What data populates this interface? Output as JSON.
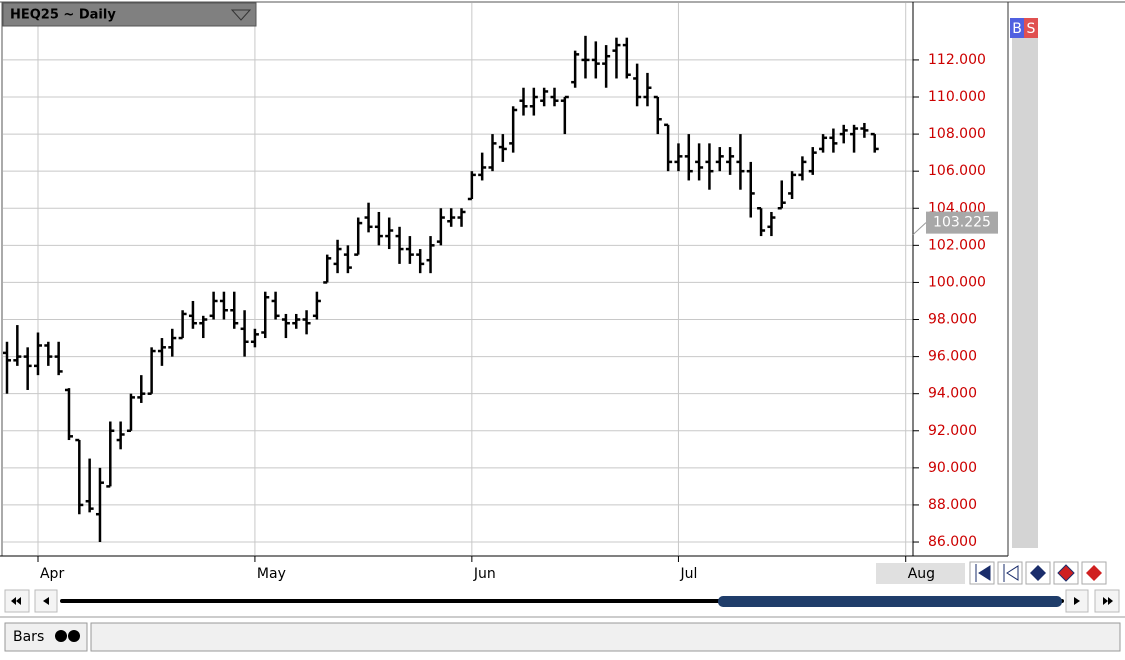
{
  "chart_data": {
    "type": "ohlc",
    "title": "HEQ25 ~ Daily",
    "color": "#000000",
    "categories": [
      null,
      null,
      null,
      "Apr",
      null,
      null,
      null,
      null,
      null,
      null,
      null,
      null,
      null,
      null,
      null,
      null,
      null,
      null,
      null,
      null,
      null,
      null,
      null,
      null,
      "May",
      null,
      null,
      null,
      null,
      null,
      null,
      null,
      null,
      null,
      null,
      null,
      null,
      null,
      null,
      null,
      null,
      null,
      null,
      null,
      null,
      "Jun",
      null,
      null,
      null,
      null,
      null,
      null,
      null,
      null,
      null,
      null,
      null,
      null,
      null,
      null,
      null,
      null,
      null,
      null,
      null,
      "Jul",
      null,
      null,
      null,
      null,
      null,
      null,
      null,
      null,
      null,
      null,
      null,
      null,
      null,
      null,
      null,
      null,
      null,
      null,
      null,
      null,
      null,
      "Aug"
    ],
    "open": [
      96.2,
      95.8,
      96.0,
      95.5,
      96.6,
      96.0,
      94.2,
      91.5,
      88.2,
      87.5,
      89.0,
      91.5,
      92.0,
      93.8,
      94.0,
      96.3,
      96.5,
      97.0,
      98.2,
      97.8,
      98.2,
      99.0,
      98.5,
      97.5,
      96.8,
      97.3,
      99.0,
      98.0,
      97.8,
      98.0,
      98.2,
      100.0,
      101.0,
      101.5,
      101.5,
      103.5,
      103.0,
      102.5,
      102.5,
      101.8,
      101.5,
      101.2,
      102.2,
      103.3,
      103.5,
      104.5,
      105.8,
      106.2,
      107.3,
      107.5,
      109.8,
      109.5,
      109.8,
      110.0,
      109.8,
      110.8,
      112.0,
      112.0,
      111.8,
      112.5,
      112.8,
      111.0,
      110.0,
      110.0,
      108.5,
      106.5,
      106.8,
      106.5,
      106.5,
      106.5,
      106.5,
      106.5,
      106.0,
      104.0,
      103.0,
      104.0,
      104.8,
      105.8,
      106.0,
      107.2,
      107.8,
      108.0,
      108.0,
      108.3,
      108.0,
      null,
      null,
      null
    ],
    "high": [
      96.8,
      97.7,
      96.5,
      97.3,
      96.8,
      96.8,
      94.3,
      91.5,
      90.5,
      90.0,
      92.5,
      92.5,
      94.0,
      95.0,
      96.5,
      97.0,
      97.5,
      98.5,
      99.0,
      98.2,
      99.5,
      99.5,
      99.5,
      98.5,
      97.5,
      99.5,
      99.5,
      98.3,
      98.3,
      98.5,
      99.5,
      101.5,
      102.3,
      102.0,
      103.5,
      104.3,
      103.8,
      103.5,
      103.0,
      102.5,
      101.8,
      102.5,
      104.0,
      104.0,
      104.0,
      106.0,
      107.0,
      108.0,
      108.0,
      109.5,
      110.5,
      110.5,
      110.5,
      110.5,
      110.0,
      112.5,
      113.3,
      113.0,
      112.8,
      113.2,
      113.2,
      111.8,
      111.3,
      110.0,
      108.5,
      107.5,
      108.0,
      107.5,
      107.5,
      107.3,
      107.3,
      108.0,
      106.5,
      104.0,
      103.8,
      105.5,
      106.0,
      106.8,
      107.3,
      108.0,
      108.3,
      108.5,
      108.5,
      108.6,
      108.0,
      null,
      null,
      null
    ],
    "low": [
      94.0,
      95.5,
      94.2,
      95.0,
      95.5,
      95.0,
      91.5,
      87.5,
      87.6,
      86.0,
      89.0,
      91.0,
      92.0,
      93.5,
      94.0,
      95.5,
      96.0,
      97.0,
      97.5,
      97.0,
      98.0,
      98.0,
      97.5,
      96.0,
      96.5,
      97.0,
      98.0,
      97.0,
      97.5,
      97.2,
      98.0,
      100.0,
      100.5,
      100.5,
      101.5,
      102.7,
      102.0,
      101.8,
      101.0,
      101.0,
      100.5,
      100.5,
      102.0,
      103.0,
      103.0,
      104.5,
      105.5,
      106.0,
      106.5,
      107.0,
      109.0,
      109.0,
      109.5,
      109.5,
      108.0,
      110.5,
      111.0,
      111.0,
      110.5,
      111.0,
      111.0,
      109.5,
      109.5,
      108.0,
      106.0,
      106.0,
      105.5,
      105.5,
      105.0,
      106.0,
      105.8,
      105.0,
      103.5,
      102.5,
      102.5,
      104.0,
      104.5,
      105.5,
      105.8,
      107.0,
      107.0,
      107.5,
      107.0,
      107.8,
      107.0,
      null,
      null,
      null
    ],
    "close": [
      95.8,
      96.0,
      95.5,
      96.6,
      96.0,
      95.2,
      91.7,
      88.0,
      87.8,
      89.2,
      92.0,
      91.8,
      93.8,
      94.0,
      96.3,
      96.5,
      97.0,
      98.3,
      97.8,
      98.0,
      99.0,
      98.5,
      97.8,
      96.8,
      97.2,
      99.2,
      98.2,
      97.8,
      98.0,
      97.8,
      99.0,
      101.3,
      101.8,
      100.8,
      103.2,
      103.0,
      102.5,
      102.8,
      101.8,
      101.5,
      101.0,
      102.0,
      103.5,
      103.5,
      103.8,
      105.8,
      106.2,
      107.5,
      107.2,
      109.3,
      109.5,
      110.0,
      110.3,
      109.8,
      110.0,
      112.3,
      112.0,
      111.8,
      112.2,
      112.8,
      111.2,
      110.0,
      110.5,
      108.8,
      106.5,
      106.8,
      106.0,
      106.2,
      106.0,
      106.8,
      106.8,
      106.0,
      104.8,
      102.8,
      103.5,
      104.3,
      105.8,
      106.5,
      107.0,
      107.8,
      107.5,
      108.2,
      108.3,
      108.2,
      107.2,
      null,
      null,
      null
    ],
    "ylim": [
      85.3,
      115.07
    ],
    "yticks": [
      {
        "value": 86,
        "label": "86.000"
      },
      {
        "value": 88,
        "label": "88.000"
      },
      {
        "value": 90,
        "label": "90.000"
      },
      {
        "value": 92,
        "label": "92.000"
      },
      {
        "value": 94,
        "label": "94.000"
      },
      {
        "value": 96,
        "label": "96.000"
      },
      {
        "value": 98,
        "label": "98.000"
      },
      {
        "value": 100,
        "label": "100.000"
      },
      {
        "value": 102,
        "label": "102.000"
      },
      {
        "value": 104,
        "label": "104.000"
      },
      {
        "value": 106,
        "label": "106.000"
      },
      {
        "value": 108,
        "label": "108.000"
      },
      {
        "value": 110,
        "label": "110.000"
      },
      {
        "value": 112,
        "label": "112.000"
      }
    ],
    "last_price": 103.225,
    "grid": true
  },
  "ui": {
    "buy": "B",
    "sell": "S",
    "tab": "Bars"
  }
}
